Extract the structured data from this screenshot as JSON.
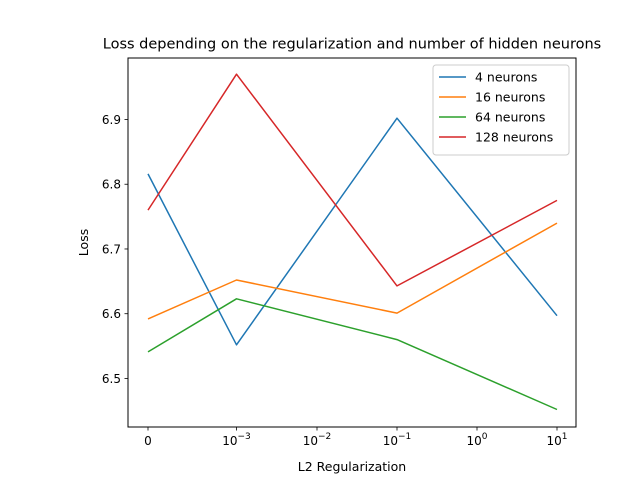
{
  "chart_data": {
    "type": "line",
    "title": "Loss depending on the regularization and number of hidden neurons",
    "xlabel": "L2 Regularization",
    "ylabel": "Loss",
    "x": [
      "0",
      "1e-3",
      "1e-1",
      "10"
    ],
    "x_tick_labels": [
      {
        "base": "0",
        "exp": ""
      },
      {
        "base": "10",
        "exp": "−3"
      },
      {
        "base": "10",
        "exp": "−2"
      },
      {
        "base": "10",
        "exp": "−1"
      },
      {
        "base": "10",
        "exp": "0"
      },
      {
        "base": "10",
        "exp": "1"
      }
    ],
    "y_ticks": [
      "6.5",
      "6.6",
      "6.7",
      "6.8",
      "6.9"
    ],
    "ylim": [
      6.425,
      6.995
    ],
    "grid": false,
    "legend_position": "top-right",
    "series": [
      {
        "name": "4 neurons",
        "color": "#1f77b4",
        "values": [
          6.816,
          6.552,
          6.902,
          6.597
        ]
      },
      {
        "name": "16 neurons",
        "color": "#ff7f0e",
        "values": [
          6.592,
          6.652,
          6.601,
          6.74
        ]
      },
      {
        "name": "64 neurons",
        "color": "#2ca02c",
        "values": [
          6.541,
          6.623,
          6.56,
          6.452
        ]
      },
      {
        "name": "128 neurons",
        "color": "#d62728",
        "values": [
          6.76,
          6.97,
          6.643,
          6.775
        ]
      }
    ]
  }
}
